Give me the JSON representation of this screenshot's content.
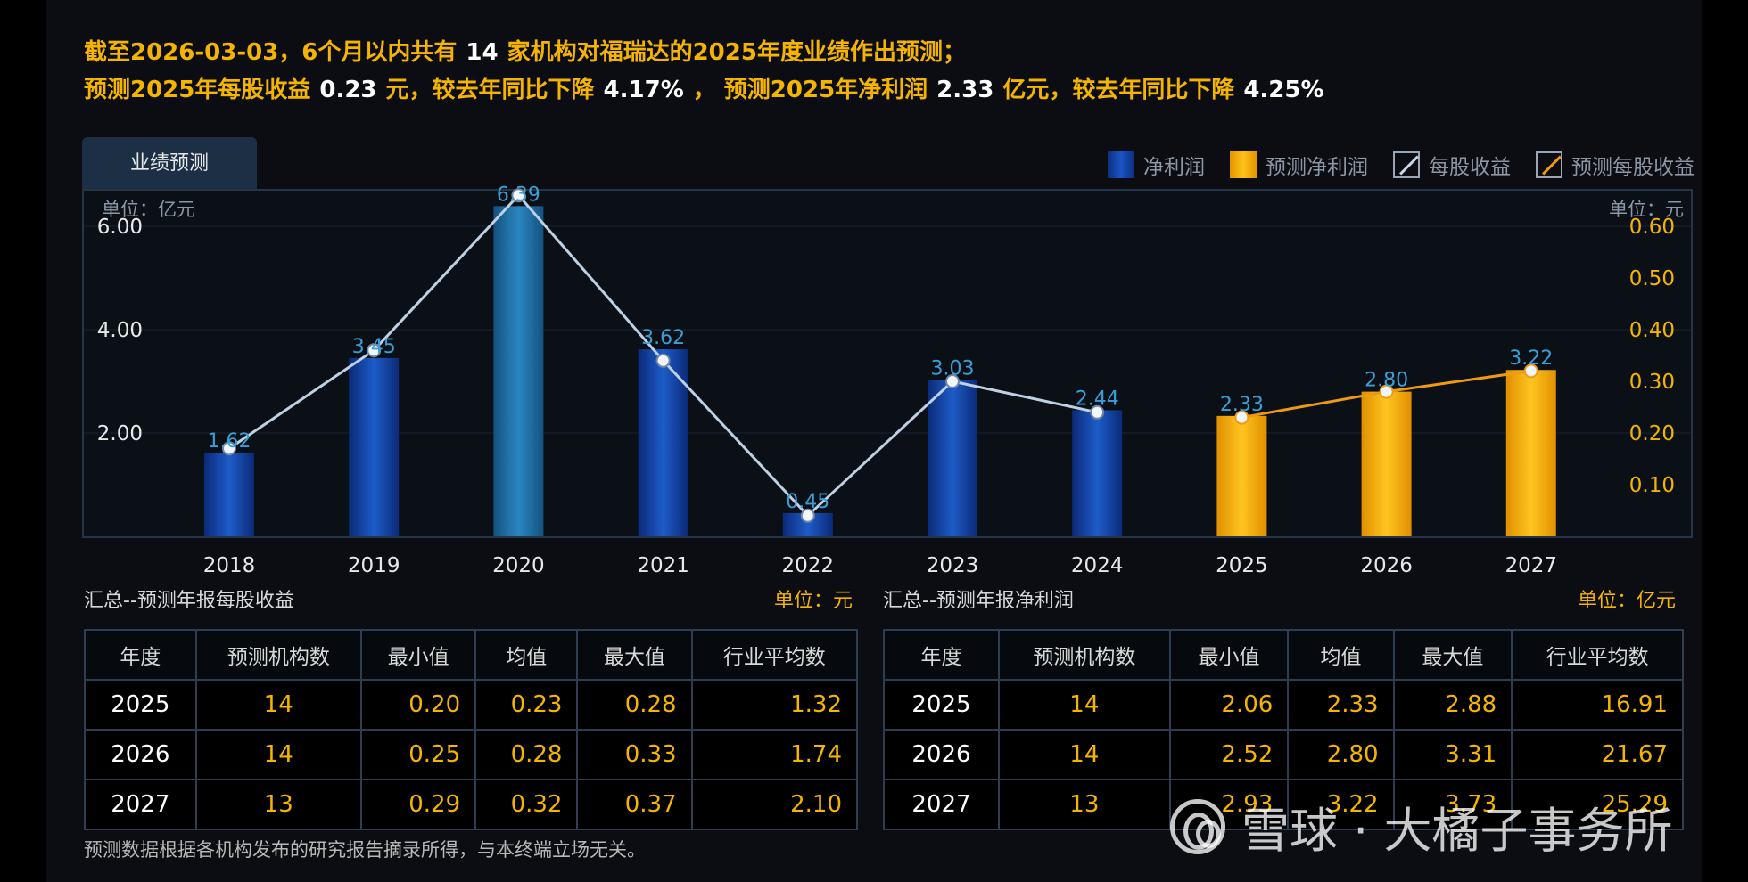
{
  "summary": {
    "line1_a": "截至2026-03-03，6个月以内共有",
    "line1_count": "14",
    "line1_b": "家机构对福瑞达的2025年度业绩作出预测；",
    "line2_a": "预测2025年每股收益",
    "line2_eps": "0.23",
    "line2_b": "元，较去年同比下降",
    "line2_eps_chg": "4.17%",
    "line2_c": "，  预测2025年净利润",
    "line2_np": "2.33",
    "line2_d": "亿元，较去年同比下降",
    "line2_np_chg": "4.25%"
  },
  "tab_label": "业绩预测",
  "legend": {
    "net_profit": "净利润",
    "forecast_net_profit": "预测净利润",
    "eps": "每股收益",
    "forecast_eps": "预测每股收益"
  },
  "colors": {
    "net_profit": "#1a4fb8",
    "forecast_net_profit": "#f5a800",
    "eps_line": "#bfd0e4",
    "forecast_eps_line": "#f09a14",
    "bar_label": "#3a9fd8",
    "accent_yellow": "#f5b400"
  },
  "chart_data": {
    "type": "bar",
    "left_unit": "单位：亿元",
    "right_unit": "单位：元",
    "categories": [
      "2018",
      "2019",
      "2020",
      "2021",
      "2022",
      "2023",
      "2024",
      "2025",
      "2026",
      "2027"
    ],
    "forecast_start_index": 7,
    "left_axis": {
      "ylim": [
        0,
        7.0
      ],
      "ticks": [
        2,
        4,
        6
      ],
      "tick_labels": [
        "2.00",
        "4.00",
        "6.00"
      ]
    },
    "right_axis": {
      "ylim": [
        0,
        0.7
      ],
      "ticks": [
        0.1,
        0.2,
        0.3,
        0.4,
        0.5,
        0.6
      ],
      "tick_labels": [
        "0.10",
        "0.20",
        "0.30",
        "0.40",
        "0.50",
        "0.60"
      ]
    },
    "series": [
      {
        "name": "净利润",
        "type": "bar",
        "axis": "left",
        "values": [
          1.62,
          3.45,
          6.39,
          3.62,
          0.45,
          3.03,
          2.44,
          2.33,
          2.8,
          3.22
        ],
        "labels": [
          "1.62",
          "3.45",
          "6.39",
          "3.62",
          "0.45",
          "3.03",
          "2.44",
          "2.33",
          "2.80",
          "3.22"
        ]
      },
      {
        "name": "每股收益",
        "type": "line",
        "axis": "right",
        "values": [
          0.17,
          0.36,
          0.66,
          0.34,
          0.04,
          0.3,
          0.24,
          0.23,
          0.28,
          0.32
        ]
      }
    ]
  },
  "eps_table": {
    "title": "汇总--预测年报每股收益",
    "unit": "单位：元",
    "headers": [
      "年度",
      "预测机构数",
      "最小值",
      "均值",
      "最大值",
      "行业平均数"
    ],
    "rows": [
      [
        "2025",
        "14",
        "0.20",
        "0.23",
        "0.28",
        "1.32"
      ],
      [
        "2026",
        "14",
        "0.25",
        "0.28",
        "0.33",
        "1.74"
      ],
      [
        "2027",
        "13",
        "0.29",
        "0.32",
        "0.37",
        "2.10"
      ]
    ]
  },
  "np_table": {
    "title": "汇总--预测年报净利润",
    "unit": "单位：亿元",
    "headers": [
      "年度",
      "预测机构数",
      "最小值",
      "均值",
      "最大值",
      "行业平均数"
    ],
    "rows": [
      [
        "2025",
        "14",
        "2.06",
        "2.33",
        "2.88",
        "16.91"
      ],
      [
        "2026",
        "14",
        "2.52",
        "2.80",
        "3.31",
        "21.67"
      ],
      [
        "2027",
        "13",
        "2.93",
        "3.22",
        "3.73",
        "25.29"
      ]
    ]
  },
  "footnote": "预测数据根据各机构发布的研究报告摘录所得，与本终端立场无关。",
  "watermark": "雪球 · 大橘子事务所"
}
